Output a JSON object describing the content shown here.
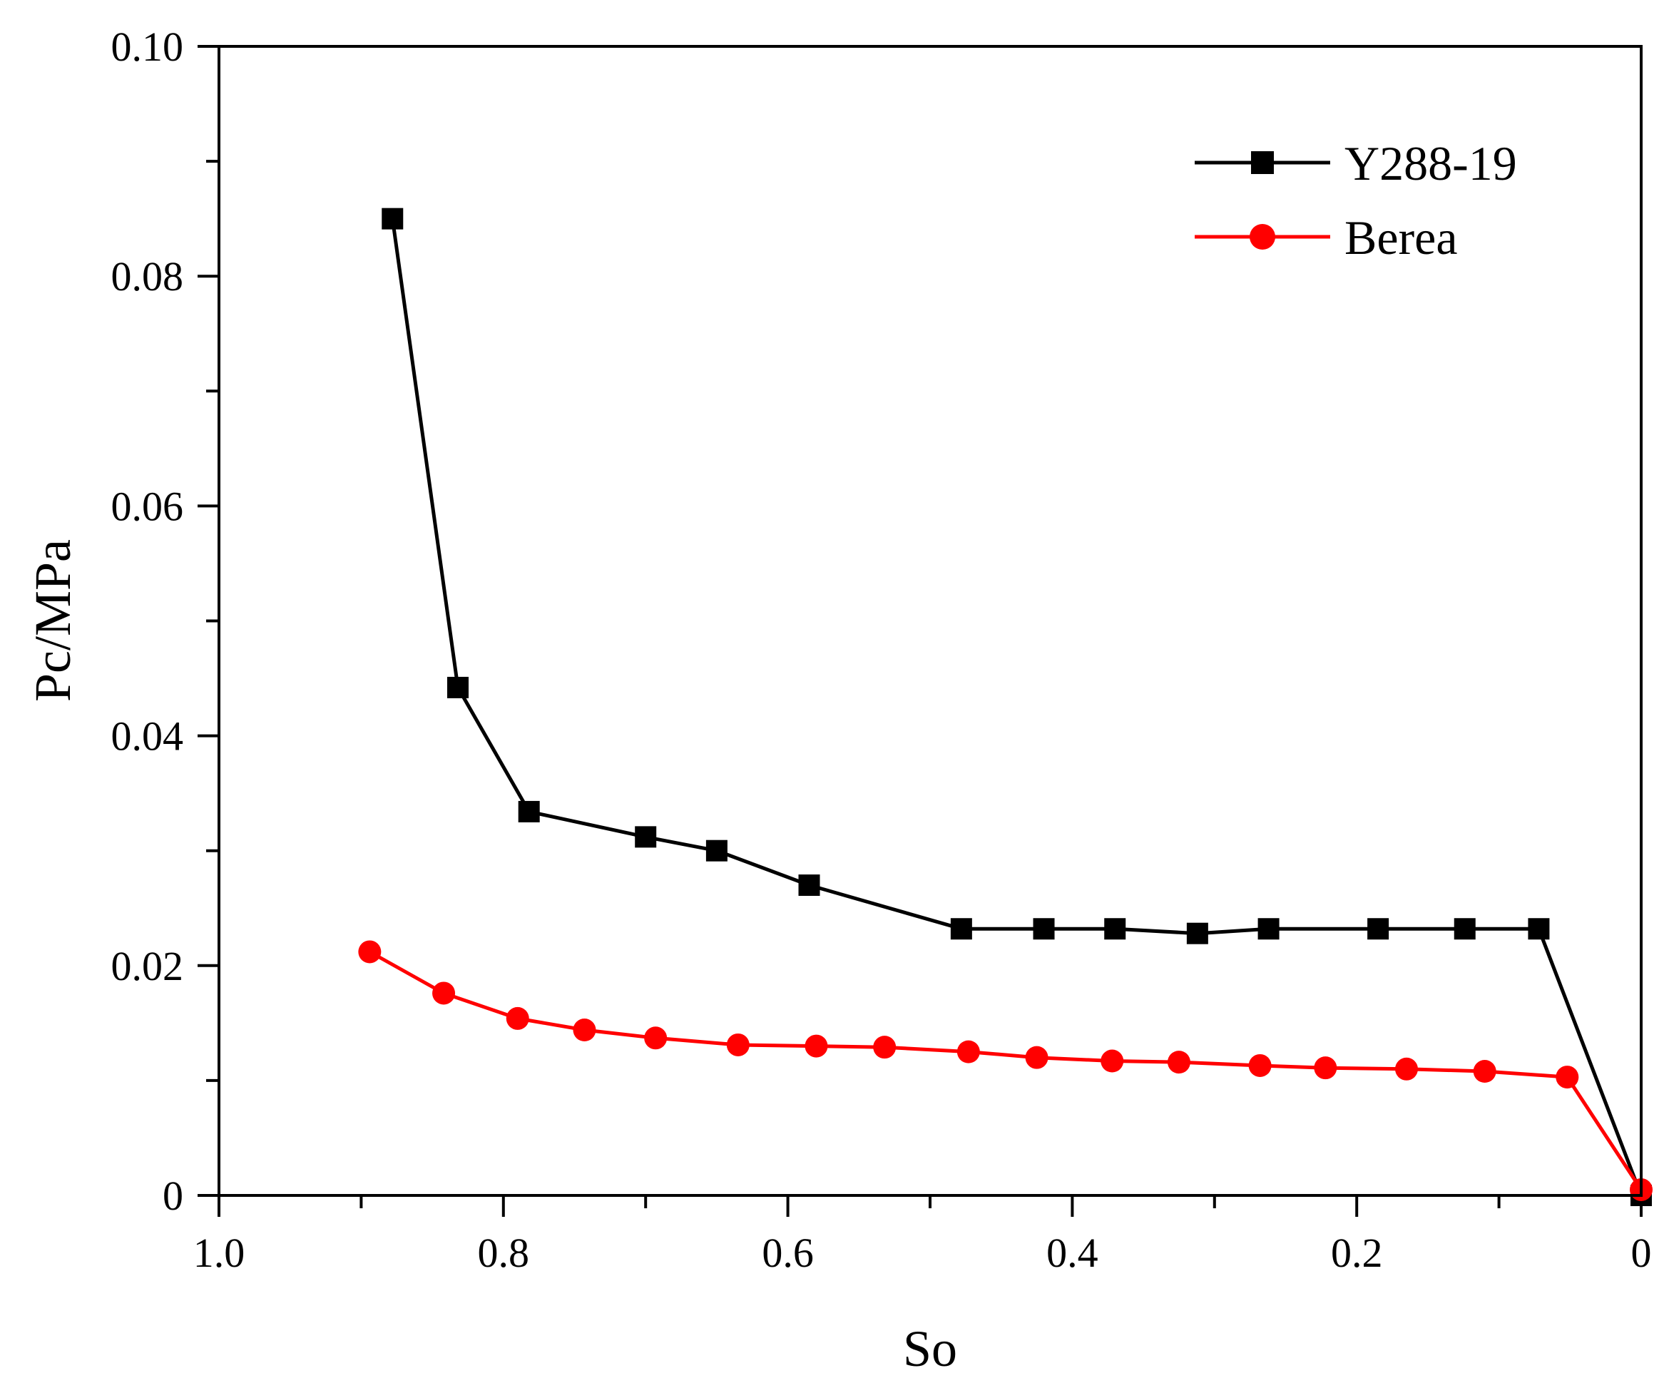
{
  "chart_data": {
    "type": "line",
    "title": "",
    "xlabel": "So",
    "ylabel": "Pc/MPa",
    "xlim": [
      1.0,
      0
    ],
    "ylim": [
      0,
      0.1
    ],
    "x_reversed": true,
    "x_ticks": [
      {
        "value": 1.0,
        "label": "1.0"
      },
      {
        "value": 0.8,
        "label": "0.8"
      },
      {
        "value": 0.6,
        "label": "0.6"
      },
      {
        "value": 0.4,
        "label": "0.4"
      },
      {
        "value": 0.2,
        "label": "0.2"
      },
      {
        "value": 0,
        "label": "0"
      }
    ],
    "x_minor_ticks": [
      0.9,
      0.7,
      0.5,
      0.3,
      0.1
    ],
    "y_ticks": [
      {
        "value": 0,
        "label": "0"
      },
      {
        "value": 0.02,
        "label": "0.02"
      },
      {
        "value": 0.04,
        "label": "0.04"
      },
      {
        "value": 0.06,
        "label": "0.06"
      },
      {
        "value": 0.08,
        "label": "0.08"
      },
      {
        "value": 0.1,
        "label": "0.10"
      }
    ],
    "y_minor_ticks": [
      0.01,
      0.03,
      0.05,
      0.07,
      0.09
    ],
    "grid": false,
    "legend_position": "top-right",
    "series": [
      {
        "name": "Y288-19",
        "color": "#000000",
        "marker": "square",
        "points": [
          [
            0.878,
            0.085
          ],
          [
            0.832,
            0.0442
          ],
          [
            0.782,
            0.0334
          ],
          [
            0.7,
            0.0312
          ],
          [
            0.65,
            0.03
          ],
          [
            0.585,
            0.027
          ],
          [
            0.478,
            0.0232
          ],
          [
            0.42,
            0.0232
          ],
          [
            0.37,
            0.0232
          ],
          [
            0.312,
            0.0228
          ],
          [
            0.262,
            0.0232
          ],
          [
            0.185,
            0.0232
          ],
          [
            0.124,
            0.0232
          ],
          [
            0.072,
            0.0232
          ],
          [
            0,
            0
          ]
        ]
      },
      {
        "name": "Berea",
        "color": "#ff0000",
        "marker": "circle",
        "points": [
          [
            0.894,
            0.0212
          ],
          [
            0.842,
            0.0176
          ],
          [
            0.79,
            0.0154
          ],
          [
            0.743,
            0.0144
          ],
          [
            0.693,
            0.0137
          ],
          [
            0.635,
            0.0131
          ],
          [
            0.58,
            0.013
          ],
          [
            0.532,
            0.0129
          ],
          [
            0.473,
            0.0125
          ],
          [
            0.425,
            0.012
          ],
          [
            0.372,
            0.0117
          ],
          [
            0.325,
            0.0116
          ],
          [
            0.268,
            0.0113
          ],
          [
            0.222,
            0.0111
          ],
          [
            0.165,
            0.011
          ],
          [
            0.11,
            0.0108
          ],
          [
            0.052,
            0.0103
          ],
          [
            0,
            0.0005
          ]
        ]
      }
    ]
  }
}
